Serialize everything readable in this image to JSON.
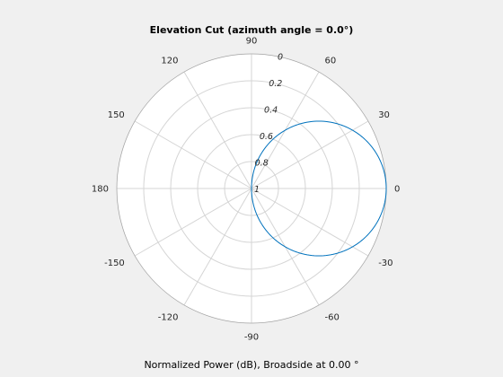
{
  "chart_data": {
    "type": "polar-line",
    "title": "Elevation Cut (azimuth angle = 0.0°)",
    "xlabel": "Normalized Power (dB), Broadside at 0.00 °",
    "angle_ticks_deg": [
      0,
      30,
      60,
      90,
      120,
      150,
      180,
      -150,
      -120,
      -90,
      -60,
      -30
    ],
    "angle_tick_labels": [
      "0",
      "30",
      "60",
      "90",
      "120",
      "150",
      "180",
      "-150",
      "-120",
      "-90",
      "-60",
      "-30"
    ],
    "radial_ticks": [
      0,
      0.2,
      0.4,
      0.6,
      0.8,
      1
    ],
    "radial_tick_labels": [
      "0",
      "0.2",
      "0.4",
      "0.6",
      "0.8",
      "1"
    ],
    "radial_tick_angle_deg": 80,
    "radial_reversed": true,
    "rlim": [
      0,
      1
    ],
    "grid": true,
    "series": [
      {
        "color": "#0072bd",
        "shape": "cos-lobe",
        "peak_angle_deg": 0,
        "angle_range_deg": [
          -90,
          90
        ],
        "peak_fraction_of_outer_radius": 1.0
      }
    ]
  }
}
